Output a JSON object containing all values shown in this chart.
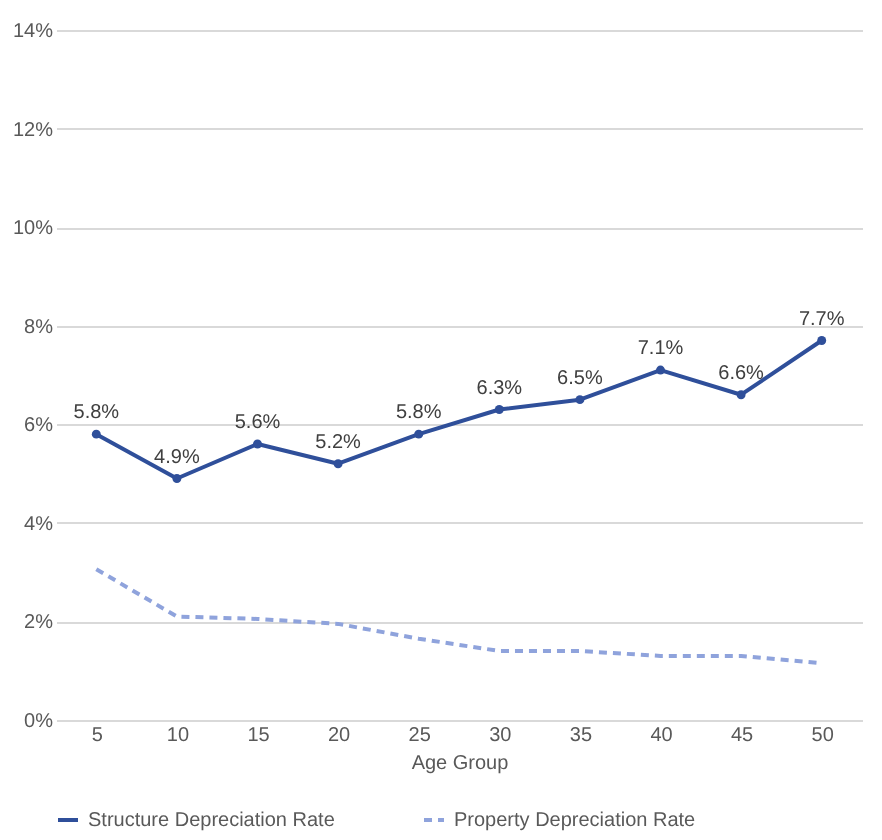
{
  "chart_data": {
    "type": "line",
    "xlabel": "Age Group",
    "categories": [
      "5",
      "10",
      "15",
      "20",
      "25",
      "30",
      "35",
      "40",
      "45",
      "50"
    ],
    "series": [
      {
        "name": "Structure Depreciation Rate",
        "color": "#2f4f9a",
        "line_style": "solid",
        "marker": "circle",
        "values": [
          5.8,
          4.9,
          5.6,
          5.2,
          5.8,
          6.3,
          6.5,
          7.1,
          6.6,
          7.7
        ],
        "value_labels": [
          "5.8%",
          "4.9%",
          "5.6%",
          "5.2%",
          "5.8%",
          "6.3%",
          "6.5%",
          "7.1%",
          "6.6%",
          "7.7%"
        ]
      },
      {
        "name": "Property Depreciation Rate",
        "color": "#8fa3dc",
        "line_style": "dashed",
        "marker": "none",
        "values": [
          3.06,
          2.1,
          2.05,
          1.95,
          1.65,
          1.4,
          1.4,
          1.3,
          1.3,
          1.15
        ]
      }
    ],
    "ylim": [
      0,
      14
    ],
    "yticks": [
      {
        "value": 0,
        "label": "0%"
      },
      {
        "value": 2,
        "label": "2%"
      },
      {
        "value": 4,
        "label": "4%"
      },
      {
        "value": 6,
        "label": "6%"
      },
      {
        "value": 8,
        "label": "8%"
      },
      {
        "value": 10,
        "label": "10%"
      },
      {
        "value": 12,
        "label": "12%"
      },
      {
        "value": 14,
        "label": "14%"
      }
    ],
    "grid": "y",
    "legend": "bottom"
  }
}
